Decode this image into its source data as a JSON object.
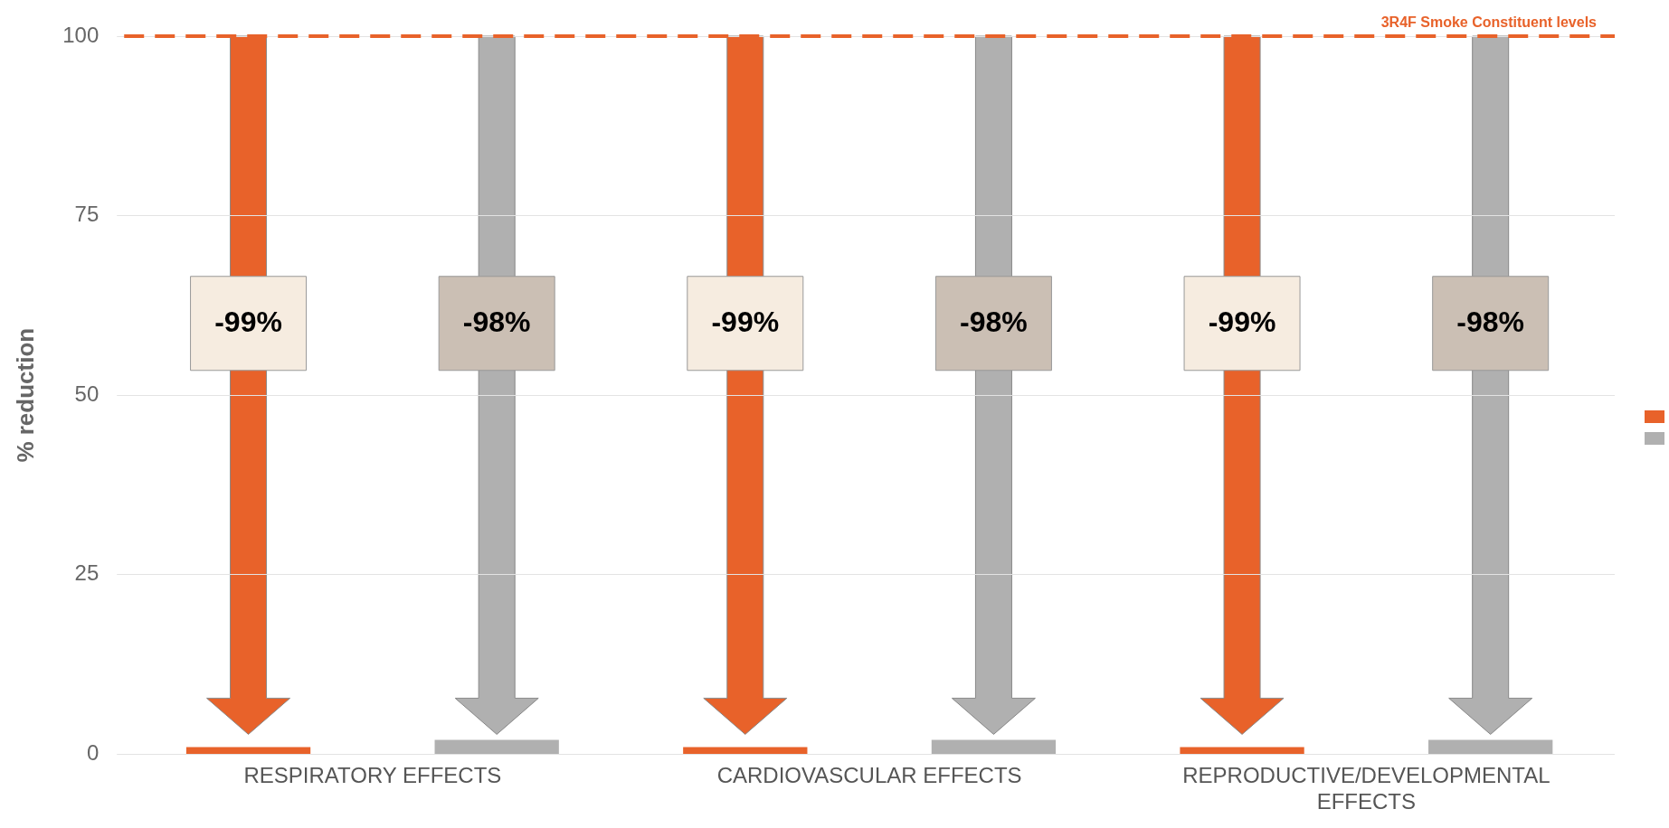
{
  "chart_data": {
    "type": "bar",
    "ylabel": "% reduction",
    "categories": [
      "RESPIRATORY EFFECTS",
      "CARDIOVASCULAR EFFECTS",
      "REPRODUCTIVE/DEVELOPMENTAL EFFECTS"
    ],
    "series": [
      {
        "color": "#e8622a",
        "values": [
          1,
          1,
          1
        ]
      },
      {
        "color": "#b0b0b0",
        "values": [
          2,
          2,
          2
        ]
      }
    ],
    "ylim": [
      0,
      100
    ],
    "yticks": [
      0,
      25,
      50,
      75,
      100
    ],
    "grid": "y",
    "legend": "right",
    "annotations": [
      "-99%",
      "-98%",
      "-99%",
      "-98%",
      "-99%",
      "-98%"
    ],
    "ref_lines": [
      {
        "axis": "y",
        "value": 100,
        "label": "3R4F Smoke Constituent levels",
        "color": "#e8622a",
        "line_style": "dashed"
      }
    ]
  }
}
